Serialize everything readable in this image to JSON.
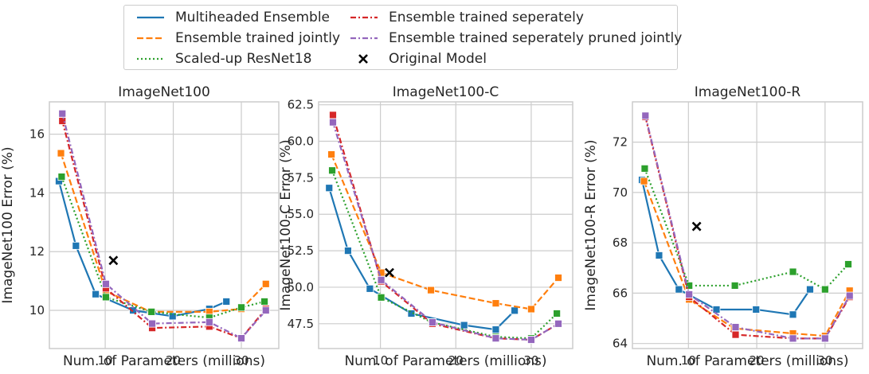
{
  "legend": {
    "items": [
      {
        "label": "Multiheaded Ensemble",
        "color": "#1f77b4",
        "style": "solid"
      },
      {
        "label": "Ensemble trained jointly",
        "color": "#ff7f0e",
        "style": "dashed"
      },
      {
        "label": "Scaled-up ResNet18",
        "color": "#2ca02c",
        "style": "dotted"
      },
      {
        "label": "Ensemble trained seperately",
        "color": "#d62728",
        "style": "dashdot"
      },
      {
        "label": "Ensemble trained seperately pruned jointly",
        "color": "#9467bd",
        "style": "dashdot"
      },
      {
        "label": "Original Model",
        "color": "#000000",
        "style": "x-marker"
      }
    ]
  },
  "chart_data": [
    {
      "type": "line",
      "title": "ImageNet100",
      "xlabel": "Num. of Parameters (millions)",
      "ylabel": "ImageNet100 Error (%)",
      "xlim": [
        1.8,
        35.5
      ],
      "ylim": [
        8.7,
        17.1
      ],
      "xticks": [
        10,
        20,
        30
      ],
      "yticks": [
        10,
        12,
        14,
        16
      ],
      "ytick_labels": [
        "10",
        "12",
        "14",
        "16"
      ],
      "series": [
        {
          "name": "Multiheaded Ensemble",
          "x": [
            3.2,
            5.7,
            8.6,
            14.1,
            19.9,
            25.3,
            27.8
          ],
          "y": [
            14.4,
            12.2,
            10.55,
            10.0,
            9.8,
            10.05,
            10.3
          ]
        },
        {
          "name": "Ensemble trained jointly",
          "x": [
            3.5,
            10.1,
            16.7,
            25.3,
            30.0,
            33.6
          ],
          "y": [
            15.35,
            10.65,
            9.95,
            9.95,
            10.05,
            10.9
          ]
        },
        {
          "name": "Scaled-up ResNet18",
          "x": [
            3.6,
            10.1,
            16.8,
            25.3,
            30.0,
            33.4
          ],
          "y": [
            14.55,
            10.45,
            9.95,
            9.75,
            10.1,
            10.3
          ]
        },
        {
          "name": "Ensemble trained seperately",
          "x": [
            3.7,
            10.1,
            16.9,
            25.3,
            30.0,
            33.6
          ],
          "y": [
            16.45,
            10.75,
            9.4,
            9.45,
            9.05,
            10.05
          ]
        },
        {
          "name": "Ensemble trained seperately pruned jointly",
          "x": [
            3.7,
            10.1,
            16.9,
            25.3,
            30.0,
            33.6
          ],
          "y": [
            16.7,
            10.9,
            9.55,
            9.6,
            9.05,
            10.0
          ]
        },
        {
          "name": "Original Model",
          "x": [
            11.2
          ],
          "y": [
            11.7
          ]
        }
      ]
    },
    {
      "type": "line",
      "title": "ImageNet100-C",
      "xlabel": "Num. of Parameters (millions)",
      "ylabel": "ImageNet100-C Error (%)",
      "xlim": [
        1.8,
        35.5
      ],
      "ylim": [
        45.8,
        62.7
      ],
      "xticks": [
        10,
        20,
        30
      ],
      "yticks": [
        47.5,
        50.0,
        52.5,
        55.0,
        57.5,
        60.0,
        62.5
      ],
      "ytick_labels": [
        "47.5",
        "50.0",
        "52.5",
        "55.0",
        "57.5",
        "60.0",
        "62.5"
      ],
      "series": [
        {
          "name": "Multiheaded Ensemble",
          "x": [
            3.2,
            5.7,
            8.6,
            14.1,
            21.1,
            25.3,
            27.8
          ],
          "y": [
            56.8,
            52.5,
            49.9,
            48.2,
            47.4,
            47.1,
            48.4
          ]
        },
        {
          "name": "Ensemble trained jointly",
          "x": [
            3.5,
            10.1,
            16.7,
            25.3,
            30.0,
            33.6
          ],
          "y": [
            59.1,
            51.0,
            49.8,
            48.9,
            48.5,
            50.65
          ]
        },
        {
          "name": "Scaled-up ResNet18",
          "x": [
            3.6,
            10.1,
            16.8,
            25.3,
            30.0,
            33.4
          ],
          "y": [
            58.0,
            49.3,
            47.6,
            46.6,
            46.5,
            48.2
          ]
        },
        {
          "name": "Ensemble trained seperately",
          "x": [
            3.7,
            10.1,
            16.9,
            25.3,
            30.0,
            33.6
          ],
          "y": [
            61.8,
            50.4,
            47.5,
            46.5,
            46.4,
            47.5
          ]
        },
        {
          "name": "Ensemble trained seperately pruned jointly",
          "x": [
            3.7,
            10.1,
            16.9,
            25.3,
            30.0,
            33.6
          ],
          "y": [
            61.3,
            50.5,
            47.6,
            46.5,
            46.4,
            47.5
          ]
        },
        {
          "name": "Original Model",
          "x": [
            11.2
          ],
          "y": [
            51.0
          ]
        }
      ]
    },
    {
      "type": "line",
      "title": "ImageNet100-R",
      "xlabel": "Num. of Parameters (millions)",
      "ylabel": "ImageNet100-R Error (%)",
      "xlim": [
        1.8,
        35.5
      ],
      "ylim": [
        63.8,
        73.6
      ],
      "xticks": [
        10,
        20,
        30
      ],
      "yticks": [
        64,
        66,
        68,
        70,
        72
      ],
      "ytick_labels": [
        "64",
        "66",
        "68",
        "70",
        "72"
      ],
      "series": [
        {
          "name": "Multiheaded Ensemble",
          "x": [
            3.2,
            5.7,
            8.6,
            14.1,
            19.9,
            25.3,
            27.8
          ],
          "y": [
            70.5,
            67.5,
            66.15,
            65.35,
            65.35,
            65.15,
            66.15
          ]
        },
        {
          "name": "Ensemble trained jointly",
          "x": [
            3.5,
            10.1,
            16.7,
            25.3,
            30.0,
            33.6
          ],
          "y": [
            70.45,
            65.75,
            64.6,
            64.4,
            64.3,
            66.1
          ]
        },
        {
          "name": "Scaled-up ResNet18",
          "x": [
            3.6,
            10.1,
            16.8,
            25.3,
            30.0,
            33.4
          ],
          "y": [
            70.95,
            66.3,
            66.3,
            66.85,
            66.15,
            67.15
          ]
        },
        {
          "name": "Ensemble trained seperately",
          "x": [
            3.7,
            10.1,
            16.9,
            25.3,
            30.0,
            33.6
          ],
          "y": [
            73.0,
            65.85,
            64.35,
            64.2,
            64.2,
            65.85
          ]
        },
        {
          "name": "Ensemble trained seperately pruned jointly",
          "x": [
            3.7,
            10.1,
            16.9,
            25.3,
            30.0,
            33.6
          ],
          "y": [
            73.05,
            65.95,
            64.65,
            64.2,
            64.2,
            65.9
          ]
        },
        {
          "name": "Original Model",
          "x": [
            11.2
          ],
          "y": [
            68.65
          ]
        }
      ]
    }
  ]
}
